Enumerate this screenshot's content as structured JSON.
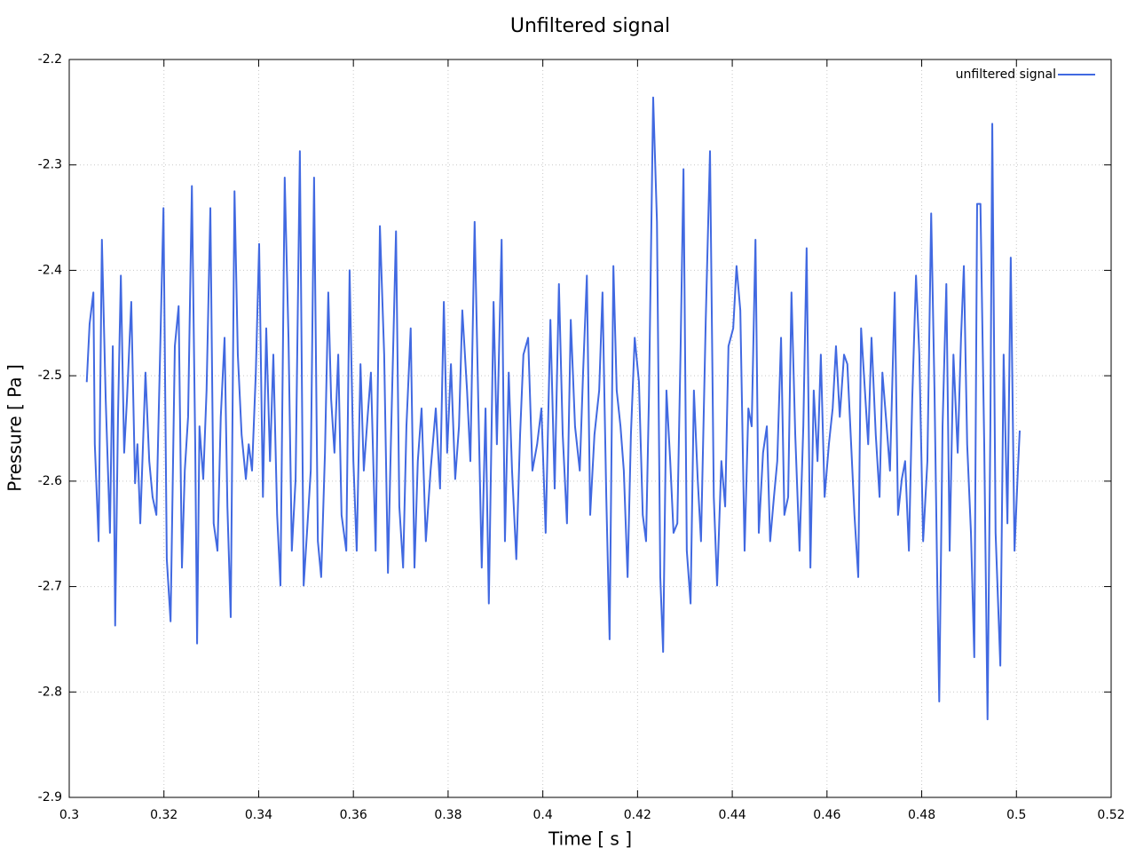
{
  "chart_data": {
    "type": "line",
    "title": "Unfiltered signal",
    "x_label": "Time [ s ]",
    "y_label": "Pressure [ Pa ]",
    "xlim": [
      0.3,
      0.52
    ],
    "ylim": [
      -2.9,
      -2.2
    ],
    "xticks": [
      0.3,
      0.32,
      0.34,
      0.36,
      0.38,
      0.4,
      0.42,
      0.44,
      0.46,
      0.48,
      0.5,
      0.52
    ],
    "yticks": [
      -2.9,
      -2.8,
      -2.7,
      -2.6,
      -2.5,
      -2.4,
      -2.3,
      -2.2
    ],
    "grid": true,
    "legend": "upper right",
    "x": [
      0.3037,
      0.3043,
      0.3051,
      0.3054,
      0.3062,
      0.3069,
      0.3077,
      0.3086,
      0.3092,
      0.3097,
      0.3103,
      0.3109,
      0.3116,
      0.3122,
      0.3131,
      0.3139,
      0.3144,
      0.315,
      0.3161,
      0.3169,
      0.3176,
      0.3184,
      0.3199,
      0.3206,
      0.3214,
      0.3223,
      0.3231,
      0.3238,
      0.3244,
      0.3251,
      0.3259,
      0.3266,
      0.327,
      0.3275,
      0.3283,
      0.329,
      0.3298,
      0.3305,
      0.3313,
      0.332,
      0.3328,
      0.3334,
      0.3341,
      0.3349,
      0.3356,
      0.3364,
      0.3373,
      0.3379,
      0.3386,
      0.3394,
      0.3401,
      0.3409,
      0.3416,
      0.3424,
      0.3431,
      0.3439,
      0.3446,
      0.3455,
      0.3463,
      0.347,
      0.3478,
      0.3487,
      0.3495,
      0.3502,
      0.351,
      0.3517,
      0.3525,
      0.3532,
      0.354,
      0.3547,
      0.3553,
      0.356,
      0.3568,
      0.3575,
      0.3585,
      0.3592,
      0.36,
      0.3607,
      0.3615,
      0.3622,
      0.363,
      0.3637,
      0.3647,
      0.3656,
      0.3665,
      0.3673,
      0.368,
      0.369,
      0.3697,
      0.3705,
      0.3712,
      0.3721,
      0.3729,
      0.3736,
      0.3744,
      0.3753,
      0.3763,
      0.3774,
      0.3783,
      0.3791,
      0.3798,
      0.3806,
      0.3815,
      0.3823,
      0.383,
      0.384,
      0.3847,
      0.3856,
      0.3864,
      0.3871,
      0.3879,
      0.3886,
      0.3896,
      0.3903,
      0.3913,
      0.392,
      0.3928,
      0.3935,
      0.3944,
      0.3952,
      0.3959,
      0.3969,
      0.3978,
      0.3988,
      0.3997,
      0.4006,
      0.4016,
      0.4025,
      0.4034,
      0.4042,
      0.4051,
      0.4059,
      0.4068,
      0.4078,
      0.4085,
      0.4093,
      0.41,
      0.4109,
      0.4119,
      0.4126,
      0.4134,
      0.4141,
      0.4149,
      0.4156,
      0.4164,
      0.4171,
      0.4179,
      0.4186,
      0.4194,
      0.4203,
      0.4211,
      0.4218,
      0.4224,
      0.4233,
      0.4241,
      0.4248,
      0.4254,
      0.4261,
      0.4269,
      0.4276,
      0.4284,
      0.4291,
      0.4297,
      0.4304,
      0.4312,
      0.4319,
      0.4327,
      0.4334,
      0.4344,
      0.4353,
      0.4361,
      0.4368,
      0.4377,
      0.4385,
      0.4392,
      0.4402,
      0.4409,
      0.4417,
      0.4426,
      0.4434,
      0.4441,
      0.4449,
      0.4456,
      0.4465,
      0.4473,
      0.448,
      0.4488,
      0.4495,
      0.4503,
      0.451,
      0.4518,
      0.4525,
      0.4533,
      0.4542,
      0.455,
      0.4557,
      0.4565,
      0.4572,
      0.458,
      0.4587,
      0.4595,
      0.4604,
      0.4612,
      0.4619,
      0.4627,
      0.4636,
      0.4643,
      0.4651,
      0.4658,
      0.4666,
      0.4672,
      0.4679,
      0.4687,
      0.4694,
      0.4703,
      0.4711,
      0.4717,
      0.4726,
      0.4733,
      0.4743,
      0.475,
      0.4758,
      0.4765,
      0.4773,
      0.478,
      0.4788,
      0.4795,
      0.4803,
      0.4812,
      0.482,
      0.4827,
      0.4833,
      0.4837,
      0.4844,
      0.4852,
      0.4859,
      0.4867,
      0.4876,
      0.4883,
      0.4889,
      0.4896,
      0.4904,
      0.4911,
      0.4917,
      0.4924,
      0.4932,
      0.4939,
      0.4945,
      0.4949,
      0.4956,
      0.4966,
      0.4973,
      0.4981,
      0.4988,
      0.4996,
      0.5003,
      0.5007
    ],
    "series": [
      {
        "name": "unfiltered signal",
        "color": "#4169e1",
        "values": [
          -2.506,
          -2.451,
          -2.421,
          -2.565,
          -2.657,
          -2.371,
          -2.522,
          -2.649,
          -2.472,
          -2.737,
          -2.539,
          -2.405,
          -2.573,
          -2.522,
          -2.43,
          -2.602,
          -2.565,
          -2.64,
          -2.497,
          -2.581,
          -2.615,
          -2.632,
          -2.341,
          -2.674,
          -2.733,
          -2.472,
          -2.434,
          -2.682,
          -2.59,
          -2.539,
          -2.32,
          -2.565,
          -2.754,
          -2.548,
          -2.598,
          -2.514,
          -2.341,
          -2.64,
          -2.666,
          -2.539,
          -2.464,
          -2.624,
          -2.729,
          -2.325,
          -2.48,
          -2.556,
          -2.598,
          -2.565,
          -2.59,
          -2.497,
          -2.375,
          -2.615,
          -2.455,
          -2.581,
          -2.48,
          -2.632,
          -2.699,
          -2.312,
          -2.464,
          -2.666,
          -2.598,
          -2.287,
          -2.699,
          -2.649,
          -2.59,
          -2.312,
          -2.657,
          -2.691,
          -2.573,
          -2.421,
          -2.522,
          -2.573,
          -2.48,
          -2.632,
          -2.666,
          -2.4,
          -2.581,
          -2.666,
          -2.489,
          -2.59,
          -2.539,
          -2.497,
          -2.666,
          -2.358,
          -2.48,
          -2.687,
          -2.548,
          -2.363,
          -2.624,
          -2.682,
          -2.548,
          -2.455,
          -2.682,
          -2.581,
          -2.531,
          -2.657,
          -2.59,
          -2.531,
          -2.607,
          -2.43,
          -2.573,
          -2.489,
          -2.598,
          -2.548,
          -2.438,
          -2.514,
          -2.581,
          -2.354,
          -2.531,
          -2.682,
          -2.531,
          -2.716,
          -2.43,
          -2.565,
          -2.371,
          -2.657,
          -2.497,
          -2.59,
          -2.674,
          -2.556,
          -2.48,
          -2.464,
          -2.59,
          -2.565,
          -2.531,
          -2.649,
          -2.447,
          -2.607,
          -2.413,
          -2.556,
          -2.64,
          -2.447,
          -2.548,
          -2.59,
          -2.497,
          -2.405,
          -2.632,
          -2.556,
          -2.514,
          -2.421,
          -2.615,
          -2.75,
          -2.396,
          -2.514,
          -2.548,
          -2.59,
          -2.691,
          -2.556,
          -2.464,
          -2.506,
          -2.632,
          -2.657,
          -2.522,
          -2.236,
          -2.354,
          -2.691,
          -2.762,
          -2.514,
          -2.581,
          -2.649,
          -2.64,
          -2.472,
          -2.304,
          -2.666,
          -2.716,
          -2.514,
          -2.598,
          -2.657,
          -2.447,
          -2.287,
          -2.615,
          -2.699,
          -2.581,
          -2.624,
          -2.472,
          -2.455,
          -2.396,
          -2.438,
          -2.666,
          -2.531,
          -2.548,
          -2.371,
          -2.649,
          -2.573,
          -2.548,
          -2.657,
          -2.615,
          -2.581,
          -2.464,
          -2.632,
          -2.615,
          -2.421,
          -2.556,
          -2.666,
          -2.548,
          -2.379,
          -2.682,
          -2.514,
          -2.581,
          -2.48,
          -2.615,
          -2.565,
          -2.531,
          -2.472,
          -2.539,
          -2.48,
          -2.489,
          -2.565,
          -2.632,
          -2.691,
          -2.455,
          -2.506,
          -2.565,
          -2.464,
          -2.556,
          -2.615,
          -2.497,
          -2.548,
          -2.59,
          -2.421,
          -2.632,
          -2.598,
          -2.581,
          -2.666,
          -2.522,
          -2.405,
          -2.48,
          -2.657,
          -2.581,
          -2.346,
          -2.514,
          -2.699,
          -2.809,
          -2.548,
          -2.413,
          -2.666,
          -2.48,
          -2.573,
          -2.464,
          -2.396,
          -2.565,
          -2.649,
          -2.767,
          -2.337,
          -2.337,
          -2.565,
          -2.826,
          -2.548,
          -2.261,
          -2.649,
          -2.775,
          -2.48,
          -2.64,
          -2.388,
          -2.666,
          -2.59,
          -2.552
        ]
      }
    ]
  }
}
